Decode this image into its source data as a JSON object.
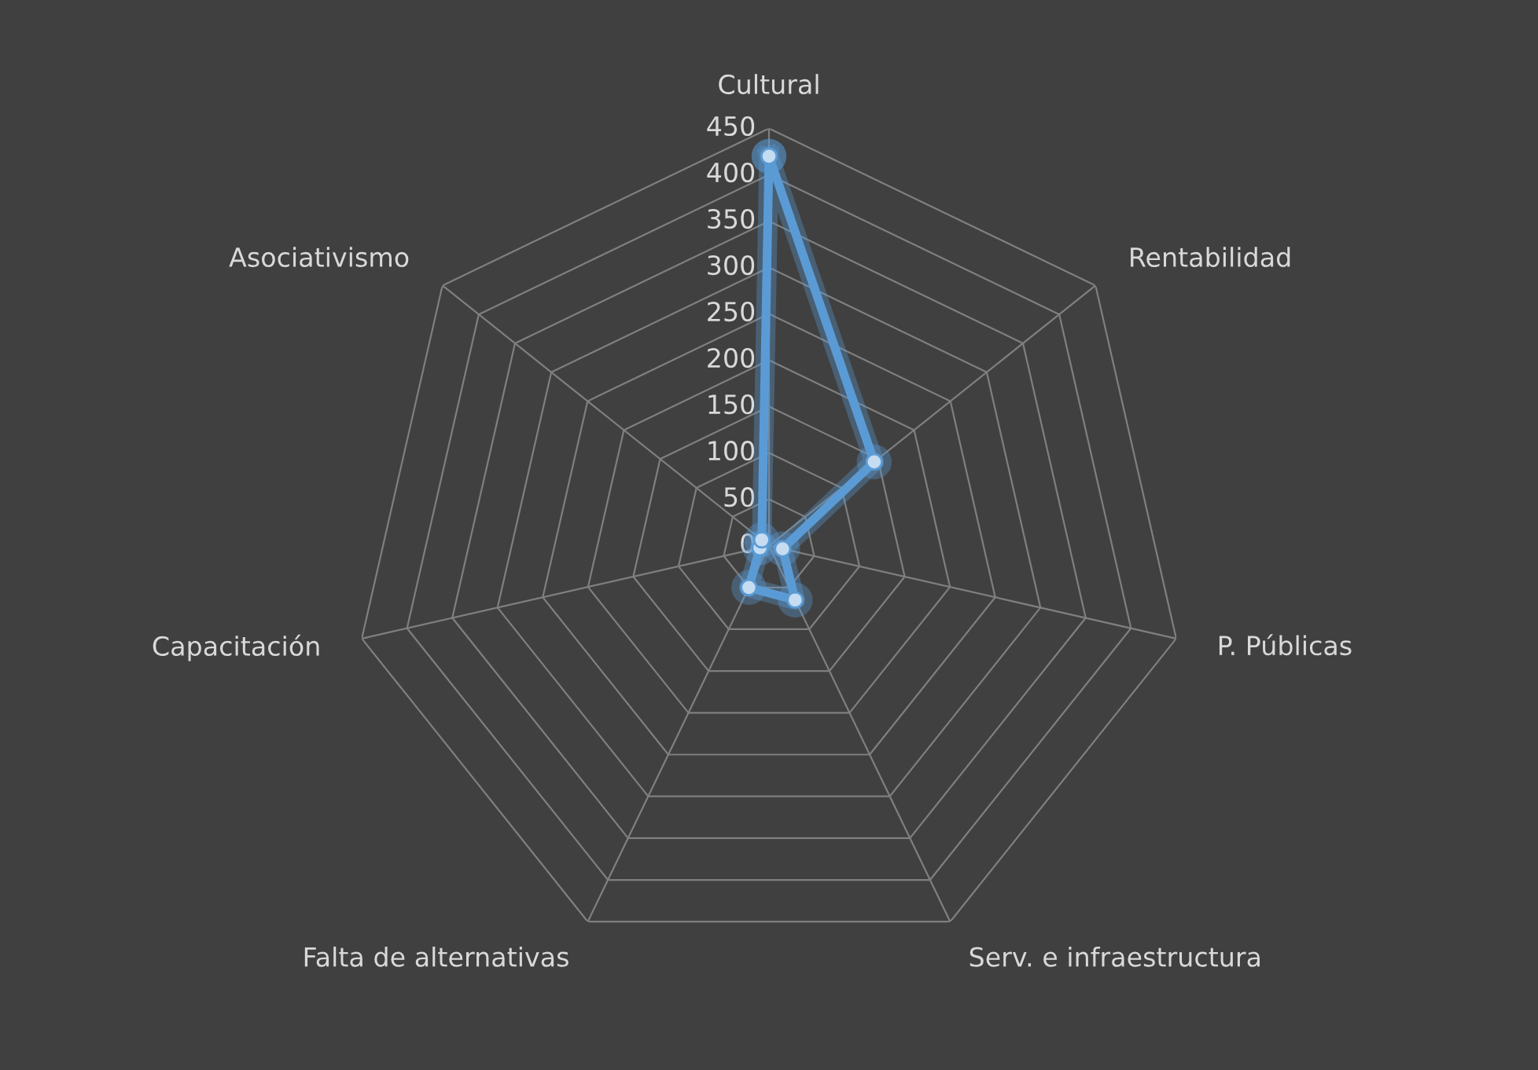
{
  "chart_data": {
    "type": "radar",
    "categories": [
      "Cultural",
      "Rentabilidad",
      "P. Públicas",
      "Serv. e infraestructura",
      "Falta de alternativas",
      "Capacitación",
      "Asociativismo"
    ],
    "series": [
      {
        "color": "#5b9bd5",
        "values": [
          420,
          145,
          15,
          65,
          50,
          10,
          10
        ]
      }
    ],
    "ylim": [
      0,
      450
    ],
    "yticks": [
      0,
      50,
      100,
      150,
      200,
      250,
      300,
      350,
      400,
      450
    ],
    "grid": true,
    "marker": "circle"
  }
}
